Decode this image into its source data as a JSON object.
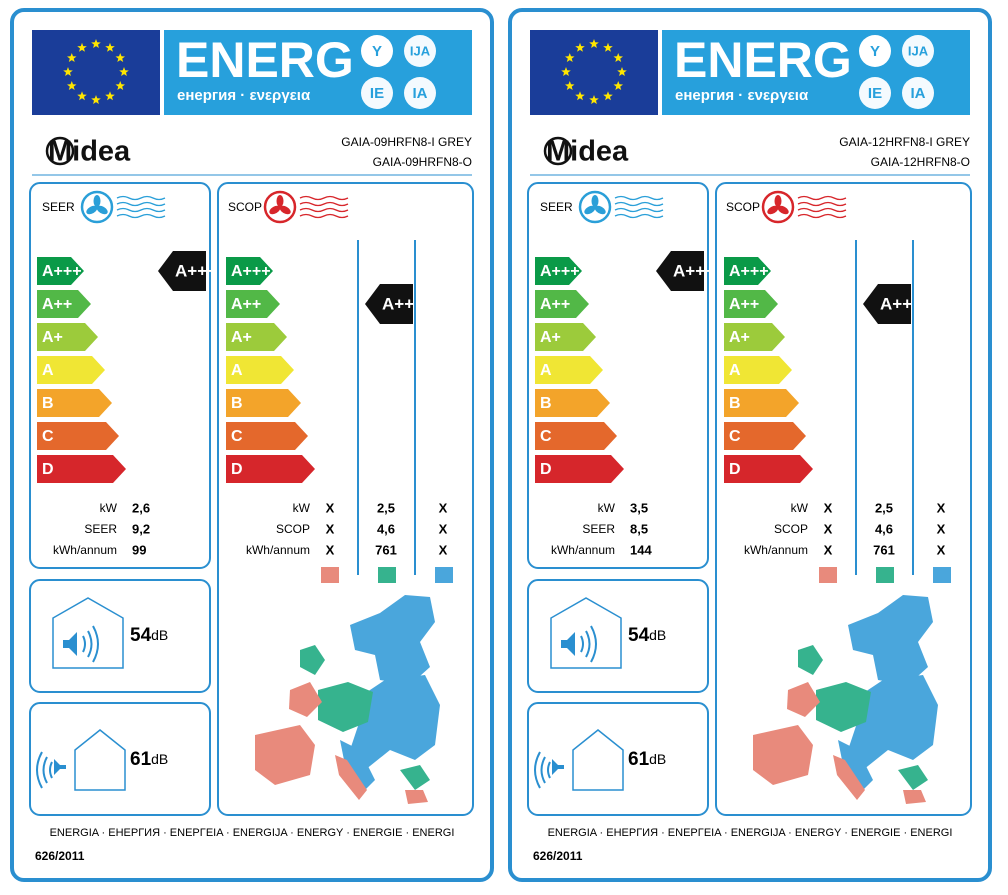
{
  "labels": [
    {
      "energy_title": "ENERG",
      "energy_subtitle": "енергия · ενεργεια",
      "language_badges": [
        "Y",
        "IJA",
        "IE",
        "IA"
      ],
      "brand": "Midea",
      "models": [
        "GAIA-09HRFN8-I GREY",
        "GAIA-09HRFN8-O"
      ],
      "seer": {
        "title": "SEER",
        "classes": [
          "A+++",
          "A++",
          "A+",
          "A",
          "B",
          "C",
          "D"
        ],
        "rating": "A+++",
        "rows": [
          {
            "label": "kW",
            "value": "2,6"
          },
          {
            "label": "SEER",
            "value": "9,2"
          },
          {
            "label": "kWh/annum",
            "value": "99"
          }
        ]
      },
      "scop": {
        "title": "SCOP",
        "classes": [
          "A+++",
          "A++",
          "A+",
          "A",
          "B",
          "C",
          "D"
        ],
        "rating": "A++",
        "rows": [
          {
            "label": "kW",
            "values": [
              "X",
              "2,5",
              "X"
            ]
          },
          {
            "label": "SCOP",
            "values": [
              "X",
              "4,6",
              "X"
            ]
          },
          {
            "label": "kWh/annum",
            "values": [
              "X",
              "761",
              "X"
            ]
          }
        ]
      },
      "noise": [
        {
          "value": "54",
          "unit": "dB"
        },
        {
          "value": "61",
          "unit": "dB"
        }
      ],
      "footer": "ENERGIA · ЕНЕРГИЯ · ΕΝΕΡΓΕΙΑ · ENERGIJA · ENERGY · ENERGIE · ENERGI",
      "regulation": "626/2011"
    },
    {
      "energy_title": "ENERG",
      "energy_subtitle": "енергия · ενεργεια",
      "language_badges": [
        "Y",
        "IJA",
        "IE",
        "IA"
      ],
      "brand": "Midea",
      "models": [
        "GAIA-12HRFN8-I GREY",
        "GAIA-12HRFN8-O"
      ],
      "seer": {
        "title": "SEER",
        "classes": [
          "A+++",
          "A++",
          "A+",
          "A",
          "B",
          "C",
          "D"
        ],
        "rating": "A+++",
        "rows": [
          {
            "label": "kW",
            "value": "3,5"
          },
          {
            "label": "SEER",
            "value": "8,5"
          },
          {
            "label": "kWh/annum",
            "value": "144"
          }
        ]
      },
      "scop": {
        "title": "SCOP",
        "classes": [
          "A+++",
          "A++",
          "A+",
          "A",
          "B",
          "C",
          "D"
        ],
        "rating": "A++",
        "rows": [
          {
            "label": "kW",
            "values": [
              "X",
              "2,5",
              "X"
            ]
          },
          {
            "label": "SCOP",
            "values": [
              "X",
              "4,6",
              "X"
            ]
          },
          {
            "label": "kWh/annum",
            "values": [
              "X",
              "761",
              "X"
            ]
          }
        ]
      },
      "noise": [
        {
          "value": "54",
          "unit": "dB"
        },
        {
          "value": "61",
          "unit": "dB"
        }
      ],
      "footer": "ENERGIA · ЕНЕРГИЯ · ΕΝΕΡΓΕΙΑ · ENERGIJA · ENERGY · ENERGIE · ENERGI",
      "regulation": "626/2011"
    }
  ]
}
